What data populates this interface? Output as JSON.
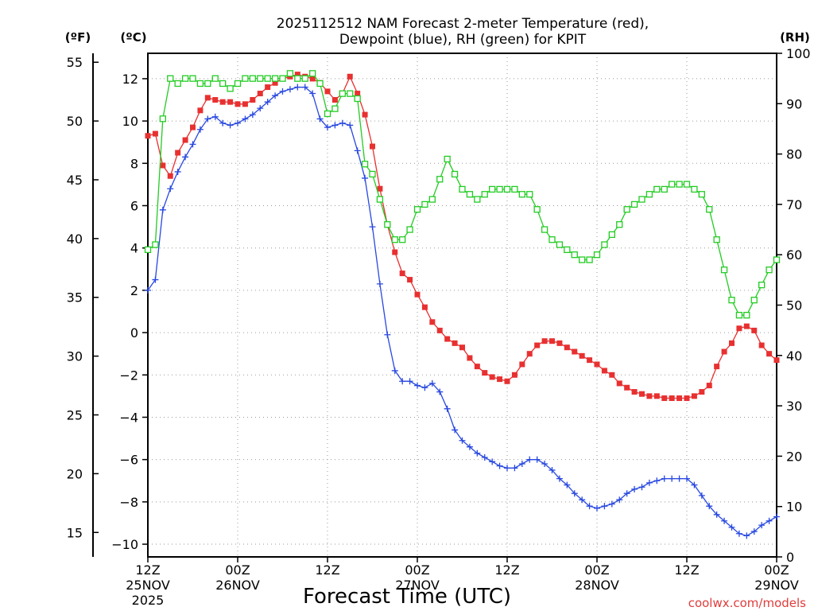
{
  "chart_data": {
    "type": "line",
    "title": [
      "2025112512 NAM Forecast 2-meter Temperature (red),",
      "Dewpoint (blue), RH (green) for KPIT"
    ],
    "xlabel": "Forecast Time (UTC)",
    "credit": "coolwx.com/models",
    "units": {
      "fahrenheit": "(ºF)",
      "celsius": "(ºC)",
      "rh": "(RH)"
    },
    "x_unit": "forecast hour",
    "xlim": [
      0,
      84
    ],
    "ylim_c": [
      -10.6,
      13.2
    ],
    "ylim_rh": [
      0,
      100
    ],
    "x_ticks": [
      {
        "x": 0,
        "label": [
          "12Z",
          "25NOV",
          "2025"
        ]
      },
      {
        "x": 12,
        "label": [
          "00Z",
          "26NOV"
        ]
      },
      {
        "x": 24,
        "label": [
          "12Z"
        ]
      },
      {
        "x": 36,
        "label": [
          "00Z",
          "27NOV"
        ]
      },
      {
        "x": 48,
        "label": [
          "12Z"
        ]
      },
      {
        "x": 60,
        "label": [
          "00Z",
          "28NOV"
        ]
      },
      {
        "x": 72,
        "label": [
          "12Z"
        ]
      },
      {
        "x": 84,
        "label": [
          "00Z",
          "29NOV"
        ]
      }
    ],
    "c_ticks": [
      -10,
      -8,
      -6,
      -4,
      -2,
      0,
      2,
      4,
      6,
      8,
      10,
      12
    ],
    "f_ticks": [
      15,
      20,
      25,
      30,
      35,
      40,
      45,
      50,
      55
    ],
    "rh_ticks": [
      0,
      10,
      20,
      30,
      40,
      50,
      60,
      70,
      80,
      90,
      100
    ],
    "series": [
      {
        "name": "Temperature (°C)",
        "color": "#e83030",
        "marker": "filled-square",
        "x": [
          0,
          1,
          2,
          3,
          4,
          5,
          6,
          7,
          8,
          9,
          10,
          11,
          12,
          13,
          14,
          15,
          16,
          17,
          18,
          19,
          20,
          21,
          22,
          23,
          24,
          25,
          26,
          27,
          28,
          29,
          30,
          31,
          32,
          33,
          34,
          35,
          36,
          37,
          38,
          39,
          40,
          41,
          42,
          43,
          44,
          45,
          46,
          47,
          48,
          49,
          50,
          51,
          52,
          53,
          54,
          55,
          56,
          57,
          58,
          59,
          60,
          61,
          62,
          63,
          64,
          65,
          66,
          67,
          68,
          69,
          70,
          71,
          72,
          73,
          74,
          75,
          76,
          77,
          78,
          79,
          80,
          81,
          82,
          83,
          84
        ],
        "values": [
          9.3,
          9.4,
          7.9,
          7.4,
          8.5,
          9.1,
          9.7,
          10.5,
          11.1,
          11.0,
          10.9,
          10.9,
          10.8,
          10.8,
          11.0,
          11.3,
          11.6,
          11.8,
          12.0,
          12.1,
          12.2,
          12.1,
          12.0,
          11.8,
          11.4,
          11.0,
          11.3,
          12.1,
          11.3,
          10.3,
          8.8,
          6.8,
          5.1,
          3.8,
          2.8,
          2.5,
          1.8,
          1.2,
          0.5,
          0.1,
          -0.3,
          -0.5,
          -0.7,
          -1.2,
          -1.6,
          -1.9,
          -2.1,
          -2.2,
          -2.3,
          -2.0,
          -1.5,
          -1.0,
          -0.6,
          -0.4,
          -0.4,
          -0.5,
          -0.7,
          -0.9,
          -1.1,
          -1.3,
          -1.5,
          -1.8,
          -2.0,
          -2.4,
          -2.6,
          -2.8,
          -2.9,
          -3.0,
          -3.0,
          -3.1,
          -3.1,
          -3.1,
          -3.1,
          -3.0,
          -2.8,
          -2.5,
          -1.6,
          -0.9,
          -0.5,
          0.2,
          0.3,
          0.1,
          -0.6,
          -1.0,
          -1.3
        ]
      },
      {
        "name": "Dewpoint (°C)",
        "color": "#2848e0",
        "marker": "plus",
        "x": [
          0,
          1,
          2,
          3,
          4,
          5,
          6,
          7,
          8,
          9,
          10,
          11,
          12,
          13,
          14,
          15,
          16,
          17,
          18,
          19,
          20,
          21,
          22,
          23,
          24,
          25,
          26,
          27,
          28,
          29,
          30,
          31,
          32,
          33,
          34,
          35,
          36,
          37,
          38,
          39,
          40,
          41,
          42,
          43,
          44,
          45,
          46,
          47,
          48,
          49,
          50,
          51,
          52,
          53,
          54,
          55,
          56,
          57,
          58,
          59,
          60,
          61,
          62,
          63,
          64,
          65,
          66,
          67,
          68,
          69,
          70,
          71,
          72,
          73,
          74,
          75,
          76,
          77,
          78,
          79,
          80,
          81,
          82,
          83,
          84
        ],
        "values": [
          2.0,
          2.5,
          5.8,
          6.8,
          7.6,
          8.3,
          8.9,
          9.6,
          10.1,
          10.2,
          9.9,
          9.8,
          9.9,
          10.1,
          10.3,
          10.6,
          10.9,
          11.2,
          11.4,
          11.5,
          11.6,
          11.6,
          11.3,
          10.1,
          9.7,
          9.8,
          9.9,
          9.8,
          8.6,
          7.3,
          5.0,
          2.3,
          -0.1,
          -1.8,
          -2.3,
          -2.3,
          -2.5,
          -2.6,
          -2.4,
          -2.8,
          -3.6,
          -4.6,
          -5.1,
          -5.4,
          -5.7,
          -5.9,
          -6.1,
          -6.3,
          -6.4,
          -6.4,
          -6.2,
          -6.0,
          -6.0,
          -6.2,
          -6.5,
          -6.9,
          -7.2,
          -7.6,
          -7.9,
          -8.2,
          -8.3,
          -8.2,
          -8.1,
          -7.9,
          -7.6,
          -7.4,
          -7.3,
          -7.1,
          -7.0,
          -6.9,
          -6.9,
          -6.9,
          -6.9,
          -7.2,
          -7.7,
          -8.2,
          -8.6,
          -8.9,
          -9.2,
          -9.5,
          -9.6,
          -9.4,
          -9.1,
          -8.9,
          -8.7
        ]
      },
      {
        "name": "RH (%)",
        "color": "#22cc22",
        "marker": "open-square",
        "axis": "rh",
        "x": [
          0,
          1,
          2,
          3,
          4,
          5,
          6,
          7,
          8,
          9,
          10,
          11,
          12,
          13,
          14,
          15,
          16,
          17,
          18,
          19,
          20,
          21,
          22,
          23,
          24,
          25,
          26,
          27,
          28,
          29,
          30,
          31,
          32,
          33,
          34,
          35,
          36,
          37,
          38,
          39,
          40,
          41,
          42,
          43,
          44,
          45,
          46,
          47,
          48,
          49,
          50,
          51,
          52,
          53,
          54,
          55,
          56,
          57,
          58,
          59,
          60,
          61,
          62,
          63,
          64,
          65,
          66,
          67,
          68,
          69,
          70,
          71,
          72,
          73,
          74,
          75,
          76,
          77,
          78,
          79,
          80,
          81,
          82,
          83,
          84
        ],
        "values": [
          61,
          62,
          87,
          95,
          94,
          95,
          95,
          94,
          94,
          95,
          94,
          93,
          94,
          95,
          95,
          95,
          95,
          95,
          95,
          96,
          95,
          95,
          96,
          94,
          88,
          89,
          92,
          92,
          91,
          78,
          76,
          71,
          66,
          63,
          63,
          65,
          69,
          70,
          71,
          75,
          79,
          76,
          73,
          72,
          71,
          72,
          73,
          73,
          73,
          73,
          72,
          72,
          69,
          65,
          63,
          62,
          61,
          60,
          59,
          59,
          60,
          62,
          64,
          66,
          69,
          70,
          71,
          72,
          73,
          73,
          74,
          74,
          74,
          73,
          72,
          69,
          63,
          57,
          51,
          48,
          48,
          51,
          54,
          57,
          59
        ]
      }
    ]
  }
}
